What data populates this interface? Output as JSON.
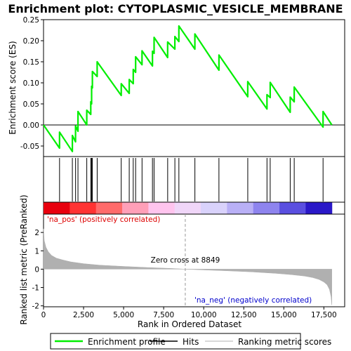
{
  "chart_data": {
    "type": "line",
    "title": "Enrichment plot: CYTOPLASMIC_VESICLE_MEMBRANE",
    "top_panel": {
      "ylabel": "Enrichment score (ES)",
      "ylim": [
        -0.075,
        0.25
      ],
      "yticks": [
        -0.05,
        0.0,
        0.05,
        0.1,
        0.15,
        0.2,
        0.25
      ],
      "ytick_labels": [
        "-0.05",
        "0.00",
        "0.05",
        "0.10",
        "0.15",
        "0.20",
        "0.25"
      ],
      "series": [
        {
          "name": "Enrichment profile",
          "color": "#00ee00",
          "x": [
            0,
            1000,
            1000,
            1800,
            1800,
            2000,
            2000,
            2150,
            2150,
            2700,
            2700,
            2950,
            2950,
            3000,
            3000,
            3050,
            3050,
            3350,
            3350,
            4850,
            4850,
            5350,
            5350,
            5600,
            5600,
            5750,
            5750,
            6150,
            6150,
            6800,
            6800,
            6900,
            6900,
            7750,
            7750,
            8200,
            8200,
            8450,
            8450,
            9450,
            9450,
            10950,
            10950,
            12750,
            12750,
            13950,
            13950,
            14150,
            14150,
            15400,
            15400,
            15650,
            15650,
            17450,
            17450,
            18000
          ],
          "y": [
            0.0,
            -0.055,
            -0.017,
            -0.063,
            -0.025,
            -0.04,
            -0.002,
            -0.015,
            0.032,
            0.0,
            0.035,
            0.025,
            0.055,
            0.05,
            0.092,
            0.088,
            0.127,
            0.115,
            0.15,
            0.07,
            0.098,
            0.075,
            0.108,
            0.098,
            0.132,
            0.125,
            0.162,
            0.143,
            0.176,
            0.14,
            0.175,
            0.17,
            0.208,
            0.16,
            0.197,
            0.18,
            0.21,
            0.198,
            0.235,
            0.18,
            0.216,
            0.13,
            0.166,
            0.067,
            0.103,
            0.038,
            0.072,
            0.065,
            0.101,
            0.03,
            0.066,
            0.055,
            0.09,
            -0.005,
            0.032,
            0.0
          ]
        }
      ]
    },
    "hits_panel": {
      "hits": [
        1000,
        1800,
        2000,
        2150,
        2700,
        2950,
        3000,
        3050,
        3350,
        4850,
        5350,
        5600,
        5750,
        6150,
        6800,
        6900,
        7750,
        8200,
        8450,
        9450,
        10950,
        12750,
        13950,
        14150,
        15400,
        15650,
        17450
      ],
      "gradient_colors": [
        "#e8000e",
        "#ff3333",
        "#ff6b6b",
        "#ff9fb8",
        "#ffc4ee",
        "#f0d6f8",
        "#d9d2fb",
        "#b9b0f6",
        "#8e84ee",
        "#5a4fe0",
        "#2a18c8"
      ]
    },
    "bottom_panel": {
      "ylabel": "Ranked list metric (PreRanked)",
      "xlabel": "Rank in Ordered Dataset",
      "ylim": [
        -2.05,
        3.0
      ],
      "yticks": [
        -2,
        -1,
        0,
        1,
        2
      ],
      "ytick_labels": [
        "-2",
        "-1",
        "0",
        "1",
        "2"
      ],
      "xlim": [
        0,
        18800
      ],
      "xticks": [
        0,
        2500,
        5000,
        7500,
        10000,
        12500,
        15000,
        17500
      ],
      "xtick_labels": [
        "0",
        "2,500",
        "5,000",
        "7,500",
        "10,000",
        "12,500",
        "15,000",
        "17,500"
      ],
      "n": 18000,
      "metric_x": [
        0,
        50,
        150,
        300,
        500,
        800,
        1200,
        1700,
        2500,
        3500,
        5000,
        6500,
        8000,
        8849,
        10000,
        11500,
        13000,
        14500,
        15500,
        16300,
        16800,
        17200,
        17500,
        17700,
        17850,
        17950,
        18000
      ],
      "metric_y": [
        2.2,
        1.55,
        1.2,
        0.95,
        0.75,
        0.6,
        0.5,
        0.4,
        0.3,
        0.22,
        0.15,
        0.09,
        0.04,
        0.0,
        -0.04,
        -0.09,
        -0.15,
        -0.23,
        -0.3,
        -0.38,
        -0.46,
        -0.56,
        -0.7,
        -0.85,
        -1.1,
        -1.5,
        -1.95
      ],
      "zero_cross_label": "Zero cross at 8849",
      "zero_cross": 8849,
      "pos_label": "'na_pos' (positively correlated)",
      "neg_label": "'na_neg' (negatively correlated)",
      "pos_color": "#dd0000",
      "neg_color": "#0000cc",
      "fill_color": "#b0b0b0"
    },
    "legend": {
      "position": "bottom",
      "items": [
        {
          "label": "Enrichment profile",
          "color": "#00ee00",
          "kind": "line"
        },
        {
          "label": "Hits",
          "color": "#000000",
          "kind": "line"
        },
        {
          "label": "Ranking metric scores",
          "color": "#b0b0b0",
          "kind": "line"
        }
      ]
    }
  }
}
